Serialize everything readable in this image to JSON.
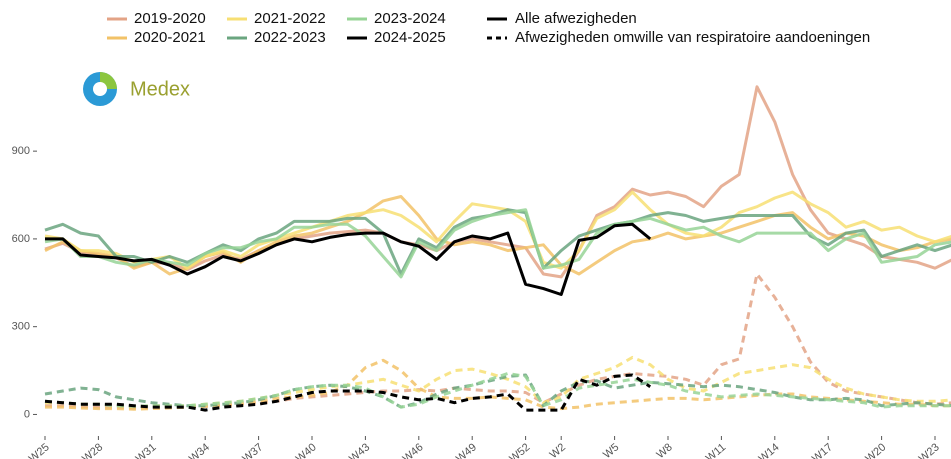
{
  "logo": {
    "text": "Medex"
  },
  "chart_data": {
    "type": "line",
    "categories": [
      "W25",
      null,
      null,
      "W28",
      null,
      null,
      "W31",
      null,
      null,
      "W34",
      null,
      null,
      "W37",
      null,
      null,
      "W40",
      null,
      null,
      "W43",
      null,
      null,
      "W46",
      null,
      null,
      "W49",
      null,
      null,
      "W52",
      null,
      "W2",
      null,
      null,
      "W5",
      null,
      null,
      "W8",
      null,
      null,
      "W11",
      null,
      null,
      "W14",
      null,
      null,
      "W17",
      null,
      null,
      "W20",
      null,
      null,
      "W23",
      null
    ],
    "line_types": {
      "all": "Alle afwezigheden",
      "respiratory": "Afwezigheden omwille van respiratoire aandoeningen"
    },
    "ylim": [
      -60,
      1150
    ],
    "yticks": [
      0,
      300,
      600,
      900
    ],
    "series": [
      {
        "name": "2019-2020",
        "color": "#e3a386",
        "all": [
          565,
          585,
          555,
          545,
          535,
          505,
          520,
          515,
          495,
          525,
          545,
          530,
          560,
          580,
          600,
          610,
          620,
          625,
          630,
          620,
          590,
          580,
          560,
          590,
          600,
          590,
          580,
          570,
          480,
          470,
          560,
          680,
          710,
          770,
          750,
          760,
          745,
          710,
          780,
          820,
          1120,
          1000,
          820,
          700,
          620,
          600,
          580,
          540,
          530,
          520,
          500,
          530
        ],
        "respiratory": [
          30,
          30,
          28,
          25,
          25,
          22,
          25,
          25,
          25,
          28,
          30,
          35,
          40,
          45,
          55,
          60,
          65,
          70,
          75,
          80,
          80,
          85,
          80,
          90,
          85,
          80,
          80,
          75,
          40,
          70,
          100,
          120,
          130,
          140,
          135,
          130,
          120,
          100,
          170,
          190,
          480,
          400,
          300,
          180,
          110,
          80,
          70,
          60,
          50,
          40,
          35,
          40
        ]
      },
      {
        "name": "2020-2021",
        "color": "#f2c267",
        "all": [
          560,
          590,
          560,
          550,
          540,
          500,
          520,
          480,
          500,
          540,
          555,
          520,
          560,
          590,
          610,
          620,
          640,
          660,
          690,
          730,
          745,
          680,
          600,
          580,
          590,
          580,
          560,
          570,
          580,
          510,
          480,
          520,
          560,
          590,
          600,
          620,
          600,
          610,
          620,
          640,
          660,
          680,
          690,
          640,
          600,
          620,
          610,
          580,
          560,
          570,
          590,
          600
        ],
        "respiratory": [
          25,
          25,
          22,
          20,
          20,
          18,
          20,
          22,
          25,
          28,
          30,
          35,
          45,
          55,
          60,
          65,
          75,
          100,
          160,
          185,
          150,
          90,
          60,
          55,
          55,
          60,
          55,
          50,
          25,
          20,
          25,
          35,
          40,
          45,
          50,
          55,
          55,
          50,
          55,
          60,
          65,
          70,
          70,
          60,
          55,
          50,
          45,
          40,
          35,
          35,
          30,
          30
        ]
      },
      {
        "name": "2021-2022",
        "color": "#f7df73",
        "all": [
          610,
          600,
          560,
          560,
          550,
          520,
          530,
          540,
          500,
          540,
          560,
          540,
          580,
          600,
          620,
          640,
          660,
          680,
          690,
          700,
          680,
          640,
          590,
          660,
          720,
          710,
          700,
          660,
          520,
          500,
          560,
          670,
          700,
          760,
          700,
          650,
          620,
          610,
          640,
          690,
          710,
          740,
          760,
          720,
          690,
          640,
          660,
          630,
          640,
          610,
          590,
          610
        ],
        "respiratory": [
          40,
          40,
          35,
          35,
          30,
          28,
          30,
          30,
          30,
          35,
          40,
          45,
          55,
          65,
          75,
          85,
          95,
          100,
          110,
          120,
          100,
          80,
          120,
          150,
          155,
          140,
          120,
          95,
          40,
          60,
          120,
          140,
          160,
          195,
          170,
          120,
          90,
          80,
          110,
          140,
          150,
          160,
          170,
          160,
          120,
          90,
          70,
          60,
          50,
          45,
          45,
          50
        ]
      },
      {
        "name": "2022-2023",
        "color": "#6aa57f",
        "all": [
          630,
          650,
          620,
          610,
          540,
          540,
          520,
          540,
          520,
          550,
          580,
          560,
          600,
          620,
          660,
          660,
          660,
          670,
          670,
          620,
          480,
          600,
          570,
          640,
          670,
          680,
          700,
          690,
          500,
          560,
          610,
          630,
          650,
          660,
          680,
          690,
          680,
          660,
          670,
          680,
          680,
          680,
          680,
          610,
          580,
          620,
          630,
          540,
          560,
          580,
          560,
          580
        ],
        "respiratory": [
          70,
          80,
          90,
          85,
          60,
          50,
          40,
          35,
          30,
          30,
          35,
          40,
          50,
          65,
          85,
          95,
          100,
          95,
          80,
          60,
          25,
          40,
          70,
          90,
          100,
          115,
          130,
          135,
          30,
          80,
          110,
          115,
          90,
          100,
          110,
          105,
          100,
          95,
          100,
          95,
          85,
          75,
          60,
          50,
          50,
          55,
          50,
          30,
          35,
          40,
          35,
          30
        ]
      },
      {
        "name": "2023-2024",
        "color": "#97d496",
        "all": [
          590,
          600,
          540,
          540,
          520,
          510,
          530,
          520,
          510,
          550,
          570,
          570,
          590,
          600,
          640,
          640,
          650,
          650,
          610,
          540,
          470,
          590,
          560,
          630,
          660,
          680,
          690,
          700,
          500,
          510,
          530,
          620,
          650,
          660,
          670,
          650,
          630,
          640,
          610,
          590,
          620,
          620,
          620,
          620,
          560,
          600,
          620,
          520,
          530,
          540,
          580,
          590
        ],
        "respiratory": [
          45,
          40,
          35,
          35,
          30,
          28,
          30,
          30,
          30,
          35,
          40,
          45,
          55,
          65,
          85,
          95,
          100,
          100,
          90,
          60,
          25,
          35,
          60,
          80,
          100,
          120,
          140,
          130,
          30,
          50,
          90,
          100,
          110,
          120,
          110,
          100,
          80,
          70,
          60,
          65,
          70,
          65,
          60,
          55,
          50,
          45,
          40,
          25,
          30,
          30,
          30,
          30
        ]
      },
      {
        "name": "2024-2025",
        "color": "#000000",
        "all": [
          600,
          600,
          545,
          540,
          535,
          525,
          530,
          510,
          480,
          505,
          540,
          525,
          550,
          580,
          600,
          590,
          605,
          615,
          620,
          620,
          590,
          575,
          530,
          590,
          610,
          600,
          620,
          445,
          430,
          410,
          595,
          605,
          645,
          650,
          600,
          null,
          null,
          null,
          null,
          null,
          null,
          null,
          null,
          null,
          null,
          null,
          null,
          null,
          null,
          null,
          null,
          null
        ],
        "respiratory": [
          45,
          40,
          35,
          35,
          35,
          30,
          25,
          25,
          25,
          15,
          25,
          30,
          35,
          45,
          60,
          75,
          80,
          80,
          80,
          75,
          60,
          50,
          55,
          40,
          55,
          60,
          70,
          15,
          15,
          15,
          120,
          100,
          130,
          135,
          95,
          null,
          null,
          null,
          null,
          null,
          null,
          null,
          null,
          null,
          null,
          null,
          null,
          null,
          null,
          null,
          null,
          null
        ]
      }
    ]
  }
}
